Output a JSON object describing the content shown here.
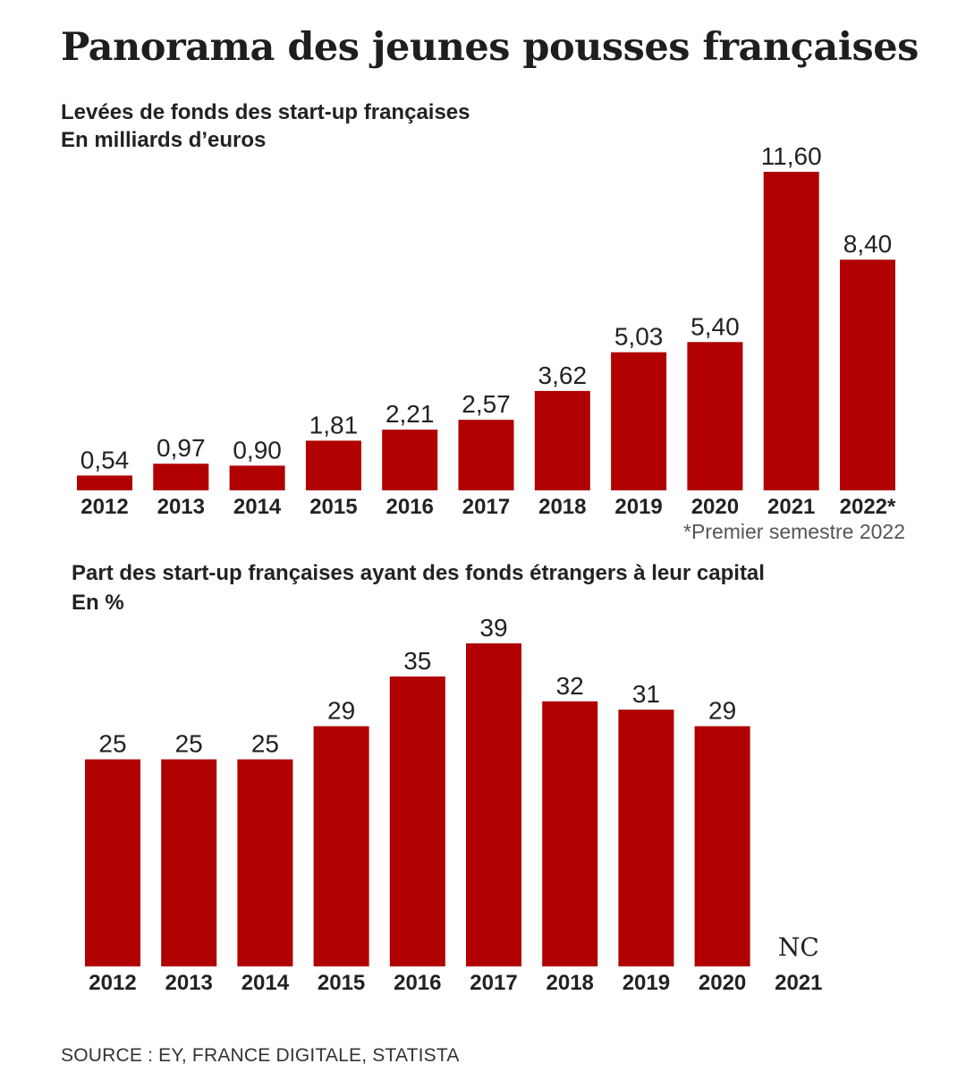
{
  "title": "Panorama des jeunes pousses françaises",
  "chart_data": [
    {
      "type": "bar",
      "title": "Levées de fonds des start-up françaises",
      "subtitle": "En milliards d’euros",
      "categories": [
        "2012",
        "2013",
        "2014",
        "2015",
        "2016",
        "2017",
        "2018",
        "2019",
        "2020",
        "2021",
        "2022*"
      ],
      "values": [
        0.54,
        0.97,
        0.9,
        1.81,
        2.21,
        2.57,
        3.62,
        5.03,
        5.4,
        11.6,
        8.4
      ],
      "value_labels": [
        "0,54",
        "0,97",
        "0,90",
        "1,81",
        "2,21",
        "2,57",
        "3,62",
        "5,03",
        "5,40",
        "11,60",
        "8,40"
      ],
      "footnote": "*Premier semestre 2022",
      "bar_color": "#b00000",
      "ylim": [
        0,
        11.6
      ],
      "grid": false
    },
    {
      "type": "bar",
      "title": "Part des start-up françaises ayant des fonds étrangers à leur capital",
      "subtitle": "En %",
      "categories": [
        "2012",
        "2013",
        "2014",
        "2015",
        "2016",
        "2017",
        "2018",
        "2019",
        "2020",
        "2021"
      ],
      "values": [
        25,
        25,
        25,
        29,
        35,
        39,
        32,
        31,
        29,
        null
      ],
      "value_labels": [
        "25",
        "25",
        "25",
        "29",
        "35",
        "39",
        "32",
        "31",
        "29",
        "NC"
      ],
      "bar_color": "#b00000",
      "ylim": [
        0,
        39
      ],
      "grid": false
    }
  ],
  "source": "SOURCE : EY, FRANCE DIGITALE, STATISTA"
}
